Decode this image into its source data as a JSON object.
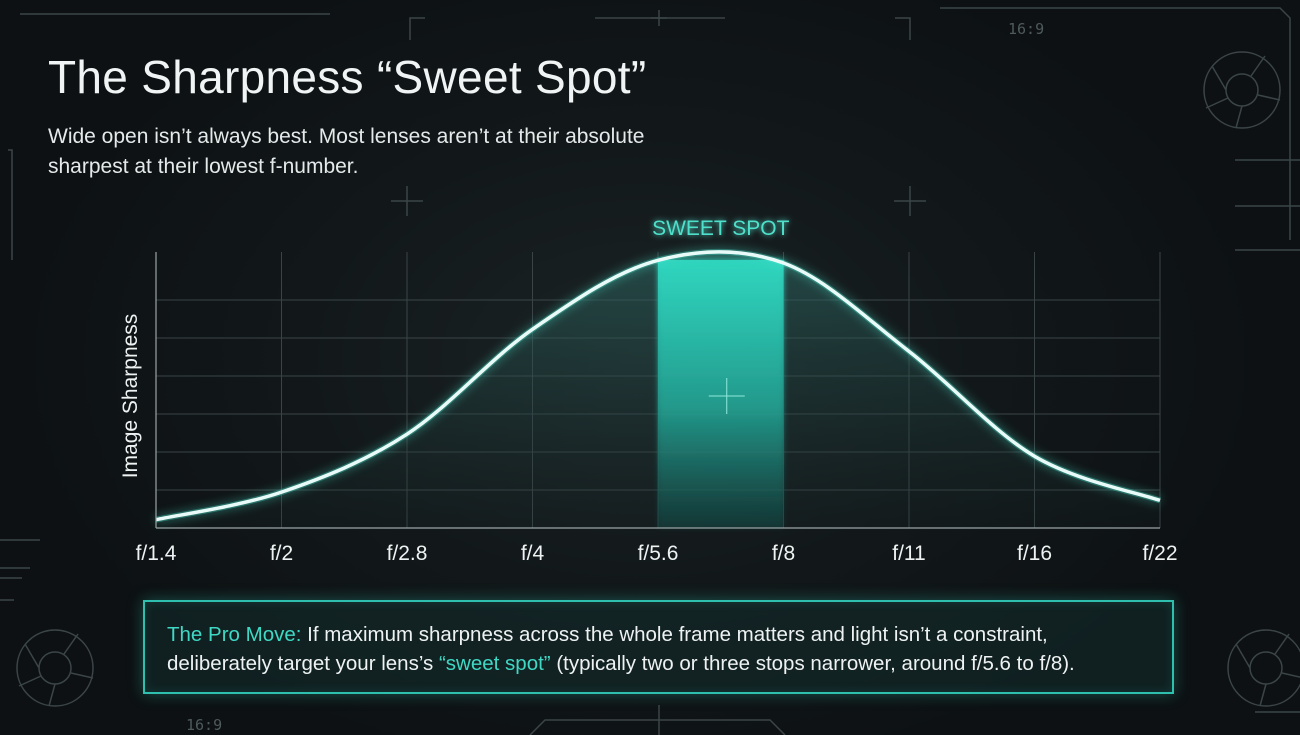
{
  "header": {
    "title": "The Sharpness “Sweet Spot”",
    "subtitle": "Wide open isn’t always best. Most lenses aren’t at their absolute sharpest at their lowest f-number."
  },
  "decor": {
    "aspect_top": "16:9",
    "aspect_bottom": "16:9"
  },
  "chart_data": {
    "type": "line",
    "title": "",
    "xlabel": "",
    "ylabel": "Image Sharpness",
    "categories": [
      "f/1.4",
      "f/2",
      "f/2.8",
      "f/4",
      "f/5.6",
      "f/8",
      "f/11",
      "f/16",
      "f/22"
    ],
    "x": [
      0,
      1,
      2,
      3,
      4,
      5,
      6,
      7,
      8
    ],
    "series": [
      {
        "values": [
          0.03,
          0.13,
          0.34,
          0.72,
          0.97,
          0.96,
          0.64,
          0.26,
          0.1
        ]
      }
    ],
    "ylim": [
      0,
      1
    ],
    "grid": true,
    "highlight": {
      "label": "SWEET SPOT",
      "from": "f/5.6",
      "to": "f/8"
    },
    "colors": {
      "curve": "#e9fbf8",
      "glow": "#49e3cc",
      "highlight": "#2ccfb9",
      "grid": "#3a4447",
      "label": "#4fe0cb"
    }
  },
  "callout": {
    "lead": "The Pro Move:",
    "text1": " If maximum sharpness across the whole frame matters and light isn’t a constraint, deliberately target your lens’s ",
    "accent": "“sweet spot”",
    "text2": " (typically two or three stops narrower, around f/5.6 to f/8)."
  }
}
